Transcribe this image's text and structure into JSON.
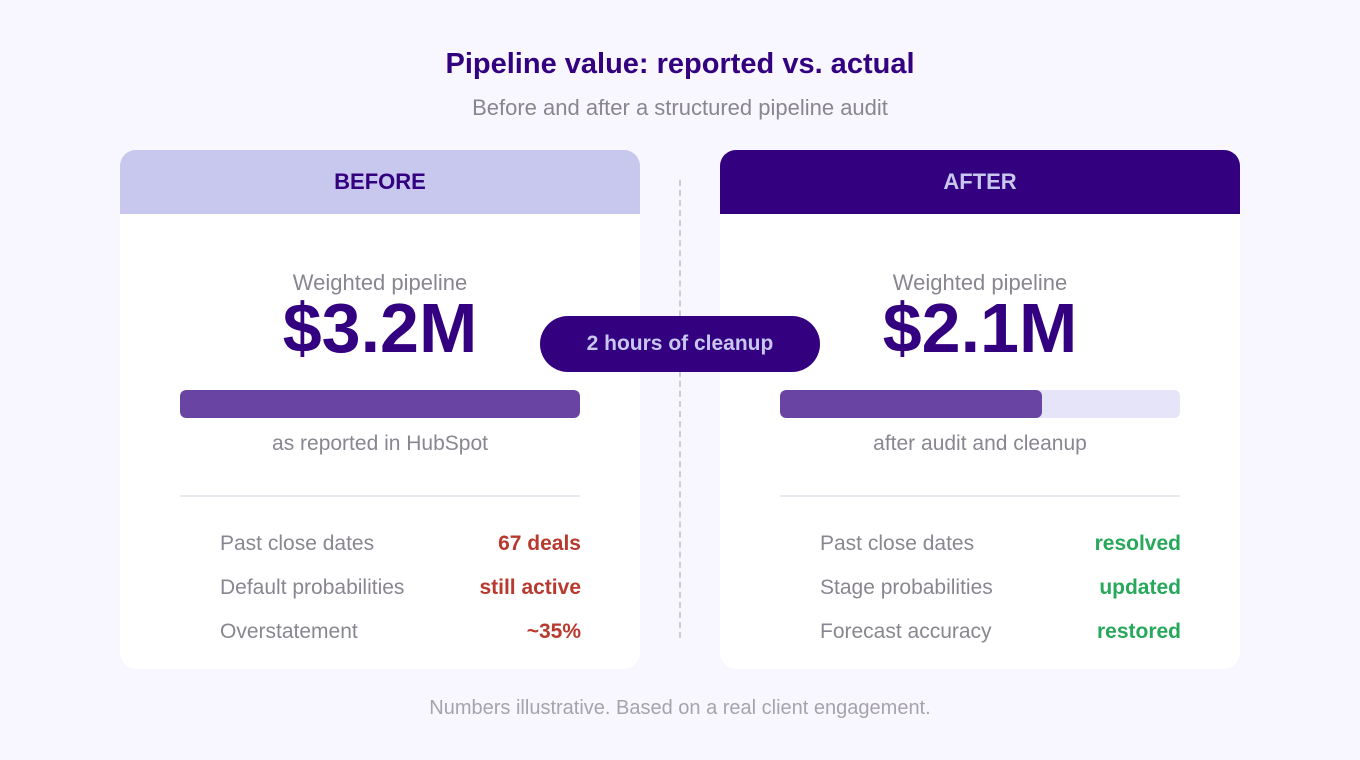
{
  "title": "Pipeline value: reported vs. actual",
  "subtitle": "Before and after a structured pipeline audit",
  "center_pill": "2 hours of cleanup",
  "footnote": "Numbers illustrative. Based on a real client engagement.",
  "colors": {
    "primary": "#330080",
    "light_accent": "#c8c7ee",
    "bar_fill": "#6a44a2",
    "bar_track": "#e6e4f8",
    "negative": "#b83a2e",
    "positive": "#27a85b"
  },
  "before": {
    "header": "BEFORE",
    "metric_label": "Weighted pipeline",
    "metric_value": "$3.2M",
    "bar_fraction": 1.0,
    "bar_caption": "as reported in HubSpot",
    "details": [
      {
        "label": "Past close dates",
        "value": "67 deals"
      },
      {
        "label": "Default probabilities",
        "value": "still active"
      },
      {
        "label": "Overstatement",
        "value": "~35%"
      }
    ]
  },
  "after": {
    "header": "AFTER",
    "metric_label": "Weighted pipeline",
    "metric_value": "$2.1M",
    "bar_fraction": 0.656,
    "bar_caption": "after audit and cleanup",
    "details": [
      {
        "label": "Past close dates",
        "value": "resolved"
      },
      {
        "label": "Stage probabilities",
        "value": "updated"
      },
      {
        "label": "Forecast accuracy",
        "value": "restored"
      }
    ]
  }
}
